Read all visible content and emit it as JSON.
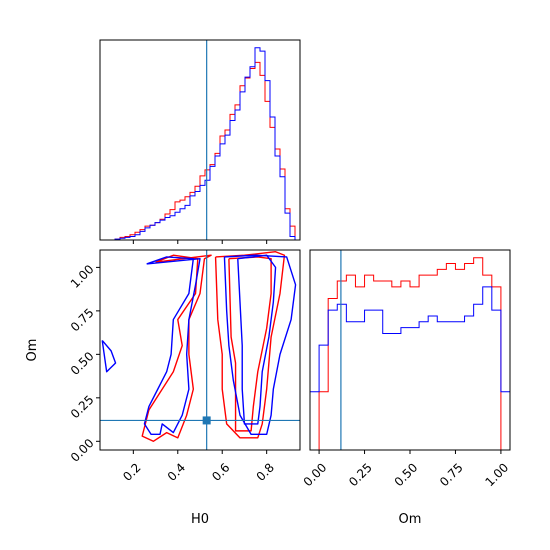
{
  "chart_data": {
    "type": "corner",
    "colors": {
      "series_a": "#ff0000",
      "series_b": "#0000ff",
      "truth": "#1f77b4"
    },
    "truths": {
      "H0": 0.53,
      "Om": 0.12
    },
    "panels": [
      {
        "id": "hist-h0",
        "type": "histogram",
        "variable": "H0",
        "xlim": [
          0.05,
          0.95
        ],
        "bin_edges": [
          0.05,
          0.0725,
          0.095,
          0.1175,
          0.14,
          0.1625,
          0.185,
          0.2075,
          0.23,
          0.2525,
          0.275,
          0.2975,
          0.32,
          0.3425,
          0.365,
          0.3875,
          0.41,
          0.4325,
          0.455,
          0.4775,
          0.5,
          0.5225,
          0.545,
          0.5675,
          0.59,
          0.6125,
          0.635,
          0.6575,
          0.68,
          0.7025,
          0.725,
          0.7475,
          0.77,
          0.7925,
          0.815,
          0.8375,
          0.86,
          0.8825,
          0.905,
          0.9275,
          0.95
        ],
        "series": [
          {
            "name": "",
            "color": "red",
            "values": [
              0,
              0,
              0,
              1,
              3,
              4,
              6,
              9,
              12,
              16,
              17,
              20,
              24,
              30,
              35,
              44,
              46,
              50,
              55,
              62,
              74,
              81,
              87,
              100,
              120,
              127,
              145,
              156,
              178,
              187,
              198,
              205,
              190,
              160,
              130,
              105,
              82,
              36,
              16,
              0
            ]
          },
          {
            "name": "",
            "color": "blue",
            "values": [
              0,
              0,
              0,
              1,
              2,
              3,
              4,
              6,
              10,
              14,
              17,
              20,
              23,
              26,
              28,
              32,
              36,
              40,
              51,
              56,
              63,
              69,
              85,
              97,
              111,
              121,
              138,
              150,
              171,
              188,
              200,
              222,
              218,
              184,
              142,
              97,
              73,
              31,
              4,
              0
            ]
          }
        ]
      },
      {
        "id": "hist-om",
        "type": "histogram",
        "variable": "Om",
        "xlim": [
          -0.05,
          1.05
        ],
        "bin_edges": [
          -0.05,
          0.0,
          0.05,
          0.1,
          0.15,
          0.2,
          0.25,
          0.3,
          0.35,
          0.4,
          0.45,
          0.5,
          0.55,
          0.6,
          0.65,
          0.7,
          0.75,
          0.8,
          0.85,
          0.9,
          0.95,
          1.0,
          1.05
        ],
        "series": [
          {
            "name": "",
            "color": "red",
            "values": [
              0,
              10,
              26,
              29,
              30,
              28,
              30,
              29,
              29,
              28,
              29,
              28,
              30,
              30,
              31,
              32,
              31,
              32,
              33,
              30,
              28,
              0
            ]
          },
          {
            "name": "",
            "color": "blue",
            "values": [
              10,
              18,
              24,
              25,
              22,
              22,
              24,
              24,
              20,
              20,
              21,
              21,
              22,
              23,
              22,
              22,
              22,
              23,
              25,
              28,
              24,
              10
            ]
          }
        ]
      },
      {
        "id": "contour-h0-om",
        "type": "contour",
        "x_variable": "H0",
        "y_variable": "Om",
        "xlim": [
          0.05,
          0.95
        ],
        "ylim": [
          -0.05,
          1.1
        ],
        "series": [
          {
            "name": "",
            "color": "red",
            "contours": [
              [
                [
                  0.3,
                  1.03
                ],
                [
                  0.38,
                  1.07
                ],
                [
                  0.49,
                  1.05
                ],
                [
                  0.48,
                  0.85
                ],
                [
                  0.4,
                  0.7
                ],
                [
                  0.42,
                  0.55
                ],
                [
                  0.38,
                  0.4
                ],
                [
                  0.33,
                  0.3
                ],
                [
                  0.27,
                  0.18
                ],
                [
                  0.24,
                  0.03
                ],
                [
                  0.29,
                  0.0
                ],
                [
                  0.35,
                  0.05
                ],
                [
                  0.4,
                  0.02
                ],
                [
                  0.44,
                  0.15
                ],
                [
                  0.47,
                  0.3
                ],
                [
                  0.45,
                  0.5
                ],
                [
                  0.45,
                  0.7
                ],
                [
                  0.5,
                  0.85
                ],
                [
                  0.52,
                  1.05
                ],
                [
                  0.55,
                  1.07
                ],
                [
                  0.3,
                  1.03
                ]
              ],
              [
                [
                  0.57,
                  1.06
                ],
                [
                  0.7,
                  1.07
                ],
                [
                  0.84,
                  1.09
                ],
                [
                  0.88,
                  1.07
                ],
                [
                  0.86,
                  0.85
                ],
                [
                  0.82,
                  0.6
                ],
                [
                  0.8,
                  0.3
                ],
                [
                  0.78,
                  0.1
                ],
                [
                  0.76,
                  0.02
                ],
                [
                  0.68,
                  0.02
                ],
                [
                  0.62,
                  0.1
                ],
                [
                  0.6,
                  0.3
                ],
                [
                  0.6,
                  0.5
                ],
                [
                  0.58,
                  0.7
                ],
                [
                  0.57,
                  1.06
                ]
              ],
              [
                [
                  0.63,
                  1.05
                ],
                [
                  0.76,
                  1.06
                ],
                [
                  0.82,
                  1.05
                ],
                [
                  0.82,
                  0.85
                ],
                [
                  0.8,
                  0.65
                ],
                [
                  0.76,
                  0.4
                ],
                [
                  0.74,
                  0.2
                ],
                [
                  0.73,
                  0.06
                ],
                [
                  0.66,
                  0.06
                ],
                [
                  0.66,
                  0.25
                ],
                [
                  0.66,
                  0.45
                ],
                [
                  0.64,
                  0.6
                ],
                [
                  0.63,
                  1.05
                ]
              ]
            ]
          },
          {
            "name": "",
            "color": "blue",
            "contours": [
              [
                [
                  0.26,
                  1.02
                ],
                [
                  0.35,
                  1.06
                ],
                [
                  0.47,
                  1.05
                ],
                [
                  0.45,
                  0.85
                ],
                [
                  0.38,
                  0.7
                ],
                [
                  0.37,
                  0.5
                ],
                [
                  0.35,
                  0.4
                ],
                [
                  0.31,
                  0.3
                ],
                [
                  0.27,
                  0.2
                ],
                [
                  0.25,
                  0.1
                ],
                [
                  0.28,
                  0.04
                ],
                [
                  0.32,
                  0.04
                ],
                [
                  0.33,
                  0.1
                ],
                [
                  0.38,
                  0.05
                ],
                [
                  0.42,
                  0.15
                ],
                [
                  0.45,
                  0.3
                ],
                [
                  0.44,
                  0.5
                ],
                [
                  0.45,
                  0.7
                ],
                [
                  0.48,
                  0.9
                ],
                [
                  0.5,
                  1.05
                ],
                [
                  0.26,
                  1.02
                ]
              ],
              [
                [
                  0.61,
                  1.06
                ],
                [
                  0.75,
                  1.07
                ],
                [
                  0.89,
                  1.06
                ],
                [
                  0.93,
                  0.9
                ],
                [
                  0.91,
                  0.7
                ],
                [
                  0.86,
                  0.5
                ],
                [
                  0.83,
                  0.3
                ],
                [
                  0.82,
                  0.15
                ],
                [
                  0.8,
                  0.04
                ],
                [
                  0.73,
                  0.04
                ],
                [
                  0.68,
                  0.15
                ],
                [
                  0.65,
                  0.35
                ],
                [
                  0.63,
                  0.55
                ],
                [
                  0.62,
                  0.75
                ],
                [
                  0.61,
                  1.06
                ]
              ],
              [
                [
                  0.67,
                  1.05
                ],
                [
                  0.8,
                  1.07
                ],
                [
                  0.84,
                  1.0
                ],
                [
                  0.83,
                  0.8
                ],
                [
                  0.81,
                  0.6
                ],
                [
                  0.78,
                  0.4
                ],
                [
                  0.77,
                  0.2
                ],
                [
                  0.76,
                  0.1
                ],
                [
                  0.7,
                  0.1
                ],
                [
                  0.69,
                  0.3
                ],
                [
                  0.69,
                  0.55
                ],
                [
                  0.67,
                  1.05
                ]
              ],
              [
                [
                  0.06,
                  0.58
                ],
                [
                  0.1,
                  0.52
                ],
                [
                  0.12,
                  0.45
                ],
                [
                  0.08,
                  0.4
                ],
                [
                  0.06,
                  0.58
                ]
              ]
            ]
          }
        ]
      }
    ]
  },
  "axes": {
    "h0": {
      "label": "H0",
      "ticks": [
        {
          "value": 0.2,
          "label": "0.2"
        },
        {
          "value": 0.4,
          "label": "0.4"
        },
        {
          "value": 0.6,
          "label": "0.6"
        },
        {
          "value": 0.8,
          "label": "0.8"
        }
      ]
    },
    "om_y": {
      "label": "Om",
      "ticks": [
        {
          "value": 0.0,
          "label": "0.00"
        },
        {
          "value": 0.25,
          "label": "0.25"
        },
        {
          "value": 0.5,
          "label": "0.50"
        },
        {
          "value": 0.75,
          "label": "0.75"
        },
        {
          "value": 1.0,
          "label": "1.00"
        }
      ]
    },
    "om_x": {
      "label": "Om",
      "ticks": [
        {
          "value": 0.0,
          "label": "0.00"
        },
        {
          "value": 0.25,
          "label": "0.25"
        },
        {
          "value": 0.5,
          "label": "0.50"
        },
        {
          "value": 0.75,
          "label": "0.75"
        },
        {
          "value": 1.0,
          "label": "1.00"
        }
      ]
    }
  }
}
